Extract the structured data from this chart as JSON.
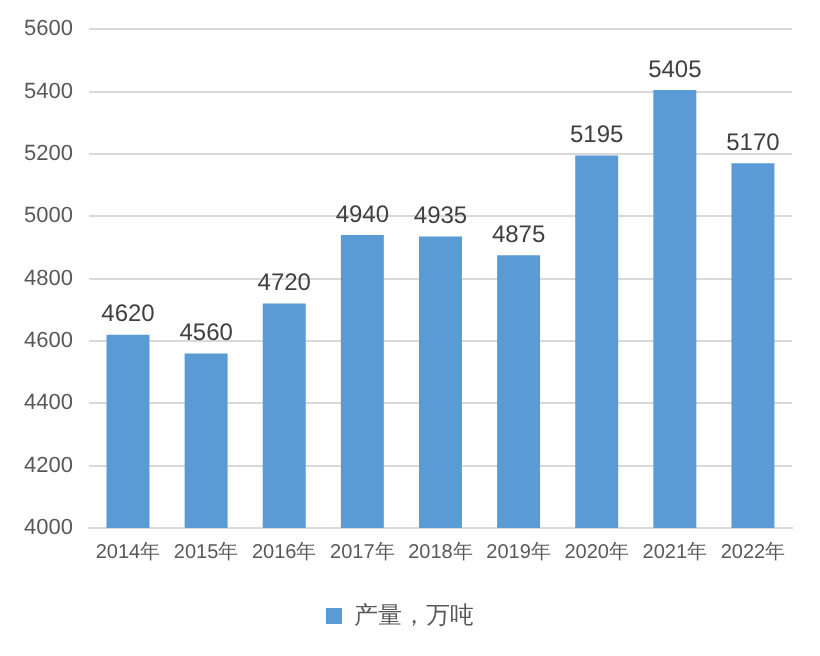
{
  "chart_data": {
    "type": "bar",
    "categories": [
      "2014年",
      "2015年",
      "2016年",
      "2017年",
      "2018年",
      "2019年",
      "2020年",
      "2021年",
      "2022年"
    ],
    "series": [
      {
        "name": "产量，万吨",
        "color": "#5b9bd5",
        "values": [
          4620,
          4560,
          4720,
          4940,
          4935,
          4875,
          5195,
          5405,
          5170
        ]
      }
    ],
    "ylim": [
      4000,
      5600
    ],
    "yticks": [
      4000,
      4200,
      4400,
      4600,
      4800,
      5000,
      5200,
      5400,
      5600
    ],
    "grid": "y",
    "legend": "bottom",
    "data_labels": true
  }
}
